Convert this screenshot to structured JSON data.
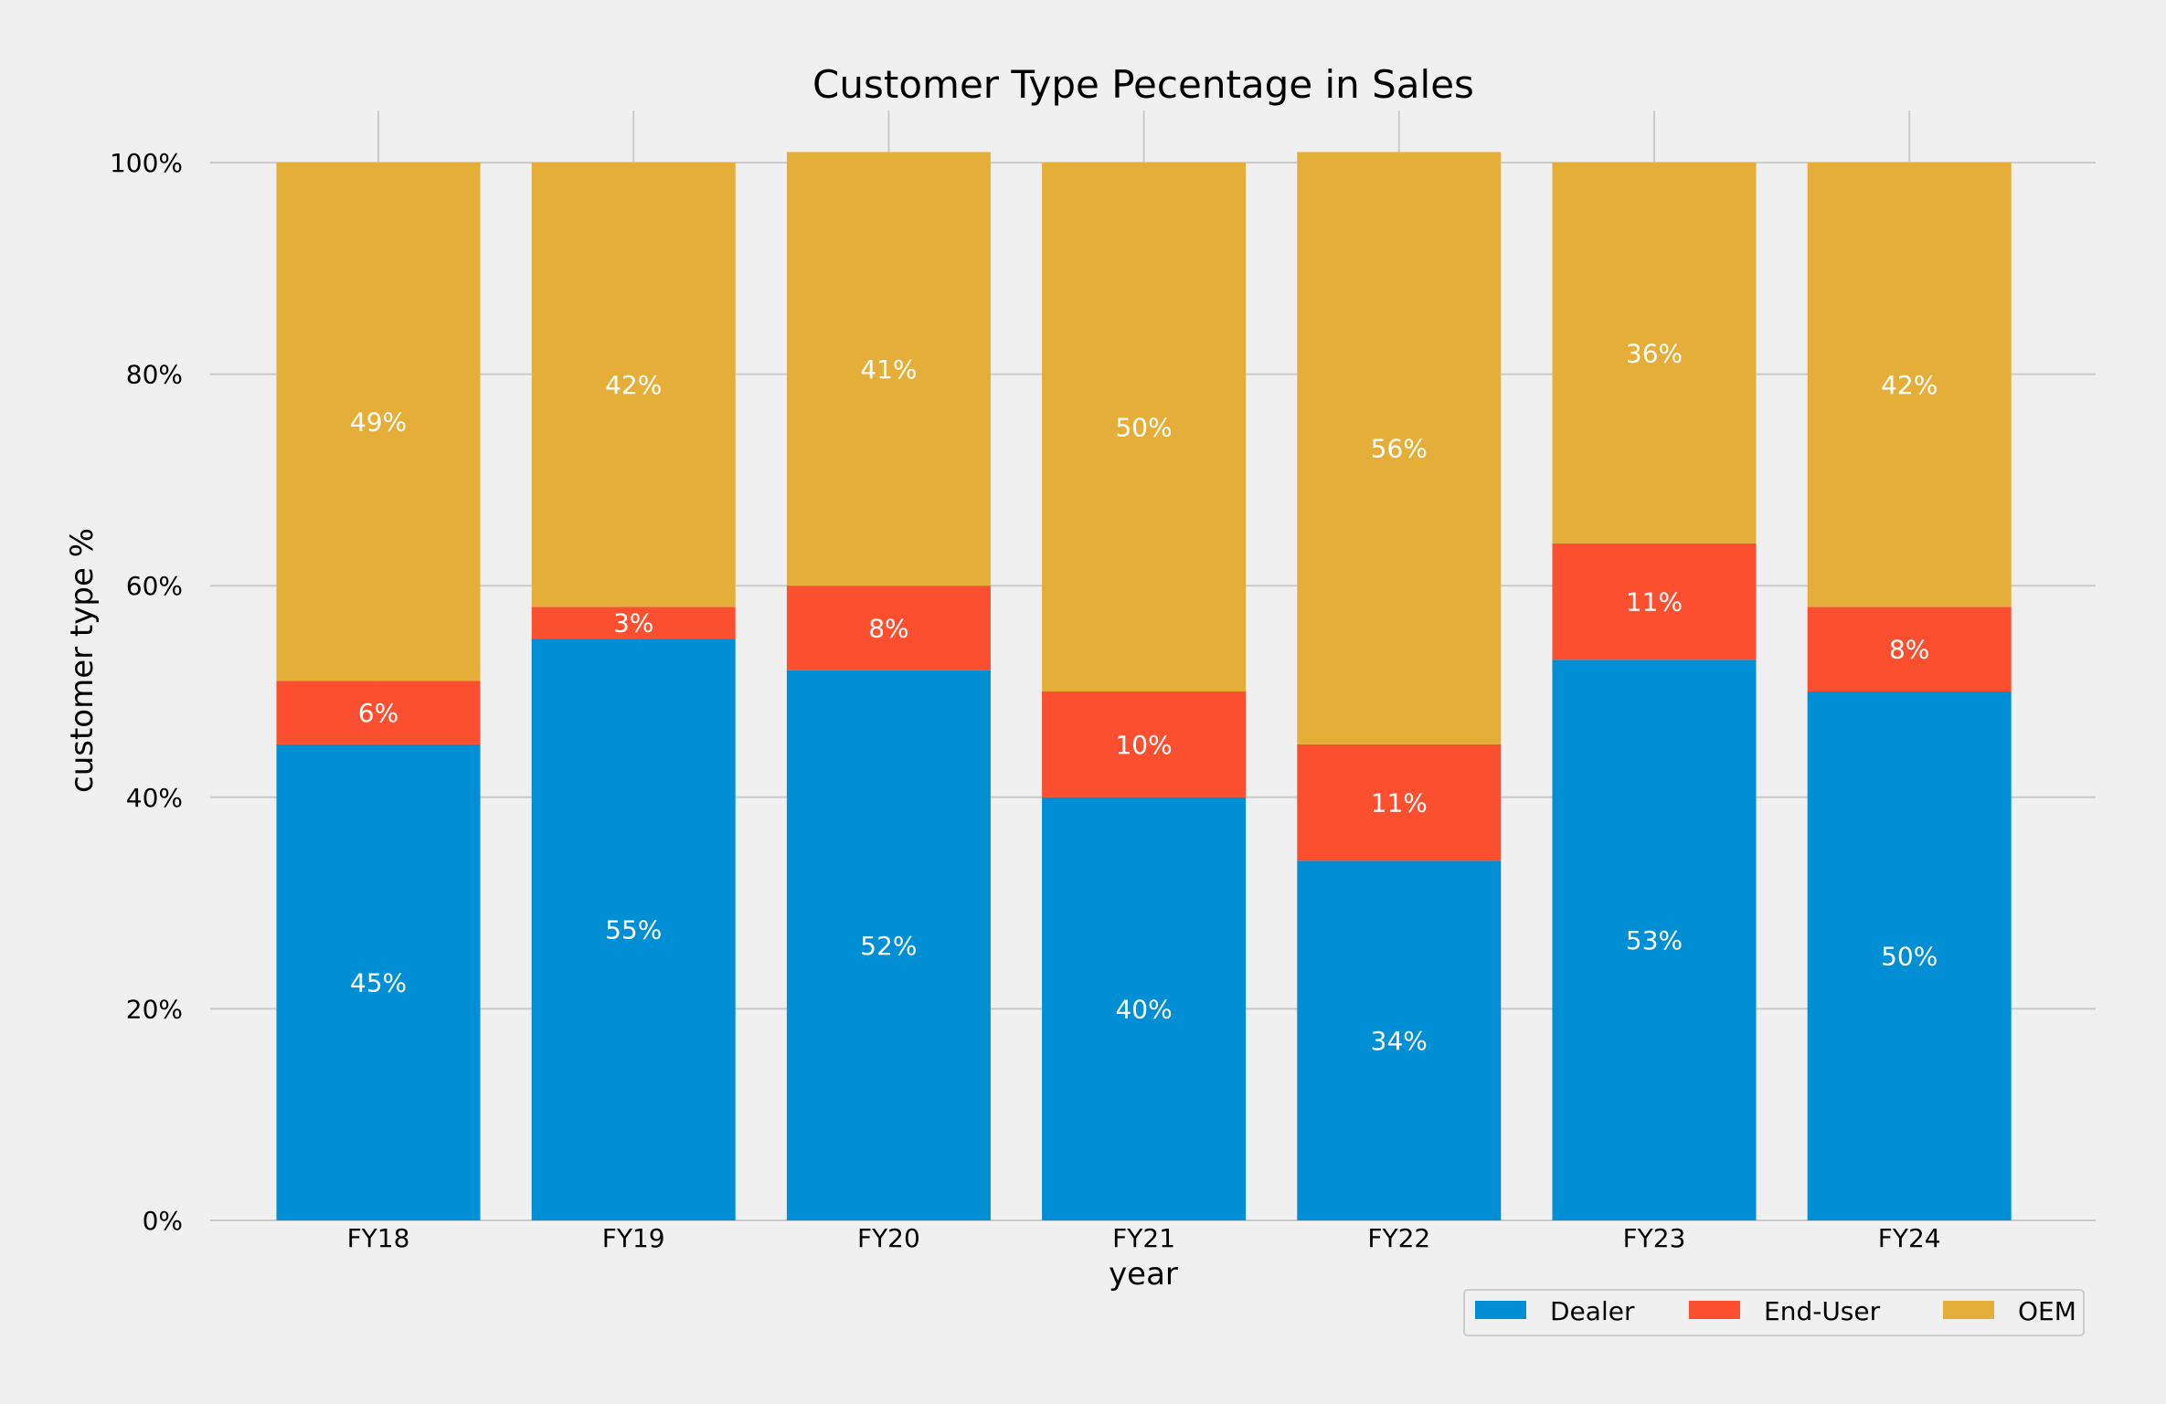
{
  "chart_data": {
    "type": "bar",
    "stacked": true,
    "title": "Customer Type Pecentage in Sales",
    "xlabel": "year",
    "ylabel": "customer type %",
    "categories": [
      "FY18",
      "FY19",
      "FY20",
      "FY21",
      "FY22",
      "FY23",
      "FY24"
    ],
    "series": [
      {
        "name": "Dealer",
        "color": "#008fd5",
        "values": [
          45,
          55,
          52,
          40,
          34,
          53,
          50
        ]
      },
      {
        "name": "End-User",
        "color": "#fc4f30",
        "values": [
          6,
          3,
          8,
          10,
          11,
          11,
          8
        ]
      },
      {
        "name": "OEM",
        "color": "#e5ae38",
        "values": [
          49,
          42,
          41,
          50,
          56,
          36,
          42
        ]
      }
    ],
    "data_labels": [
      [
        "45%",
        "55%",
        "52%",
        "40%",
        "34%",
        "53%",
        "50%"
      ],
      [
        "6%",
        "3%",
        "8%",
        "10%",
        "11%",
        "11%",
        "8%"
      ],
      [
        "49%",
        "42%",
        "41%",
        "50%",
        "56%",
        "36%",
        "42%"
      ]
    ],
    "ylim": [
      0,
      100
    ],
    "yticks": [
      0,
      20,
      40,
      60,
      80,
      100
    ],
    "ytick_labels": [
      "0%",
      "20%",
      "40%",
      "60%",
      "80%",
      "100%"
    ],
    "grid": true,
    "legend_position": "bottom-right"
  }
}
